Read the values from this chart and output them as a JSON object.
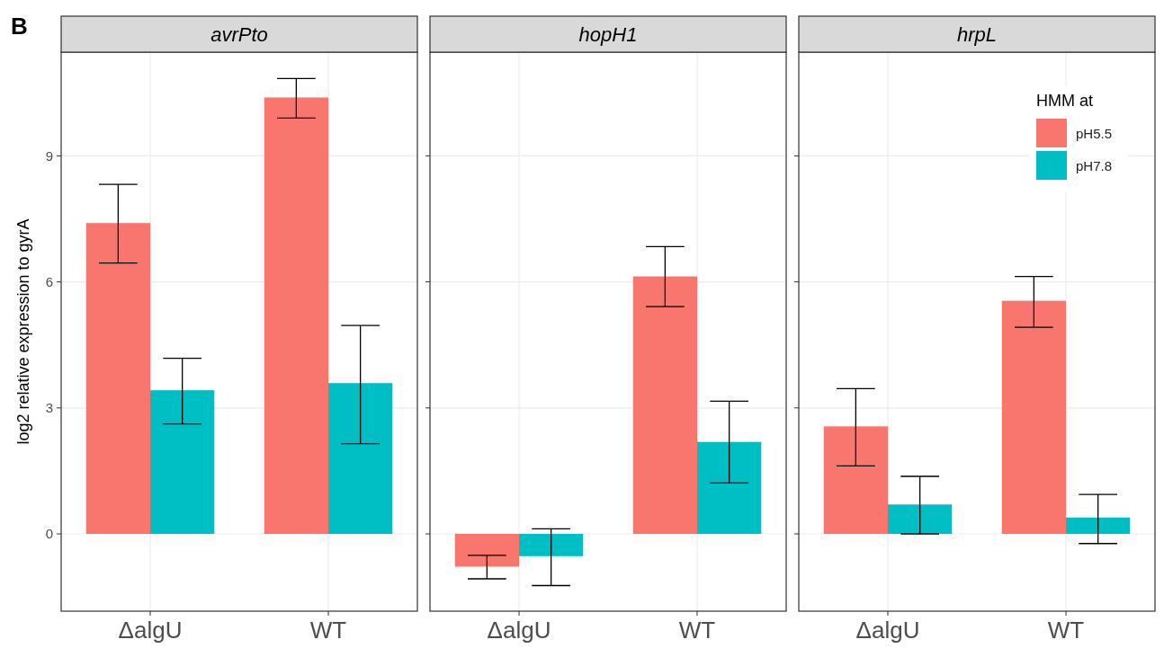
{
  "chart_data": [
    {
      "type": "bar",
      "title": "avrPto",
      "ylabel": "log2 relative expression to gyrA",
      "categories": [
        "ΔalgU",
        "WT"
      ],
      "annotations": [
        "B"
      ],
      "ylim": [
        -1.84,
        11.47
      ],
      "yticks": [
        0,
        3,
        6,
        9
      ],
      "grid": true,
      "legend": false,
      "series": [
        {
          "color": "#f8766d",
          "values": [
            7.4,
            10.39
          ],
          "errors": [
            [
              6.45,
              8.32
            ],
            [
              9.9,
              10.84
            ]
          ]
        },
        {
          "color": "#00bfc4",
          "values": [
            3.42,
            3.59
          ],
          "errors": [
            [
              2.62,
              4.18
            ],
            [
              2.15,
              4.96
            ]
          ]
        }
      ]
    },
    {
      "type": "bar",
      "title": "hopH1",
      "categories": [
        "ΔalgU",
        "WT"
      ],
      "ylim": [
        -1.84,
        11.47
      ],
      "yticks": [
        0,
        3,
        6,
        9
      ],
      "tick_labels": "x",
      "grid": true,
      "legend": false,
      "series": [
        {
          "color": "#f8766d",
          "values": [
            -0.78,
            6.13
          ],
          "errors": [
            [
              -1.07,
              -0.51
            ],
            [
              5.41,
              6.84
            ]
          ]
        },
        {
          "color": "#00bfc4",
          "values": [
            -0.53,
            2.19
          ],
          "errors": [
            [
              -1.23,
              0.12
            ],
            [
              1.21,
              3.16
            ]
          ]
        }
      ]
    },
    {
      "type": "bar",
      "title": "hrpL",
      "legend_title": "HMM at",
      "categories": [
        "ΔalgU",
        "WT"
      ],
      "ylim": [
        -1.84,
        11.47
      ],
      "yticks": [
        0,
        3,
        6,
        9
      ],
      "tick_labels": "x",
      "grid": true,
      "legend": "top right",
      "series": [
        {
          "name": "pH5.5",
          "color": "#f8766d",
          "values": [
            2.56,
            5.55
          ],
          "errors": [
            [
              1.62,
              3.46
            ],
            [
              4.92,
              6.13
            ]
          ]
        },
        {
          "name": "pH7.8",
          "color": "#00bfc4",
          "values": [
            0.7,
            0.39
          ],
          "errors": [
            [
              0,
              1.37
            ],
            [
              -0.23,
              0.94
            ]
          ]
        }
      ]
    }
  ]
}
